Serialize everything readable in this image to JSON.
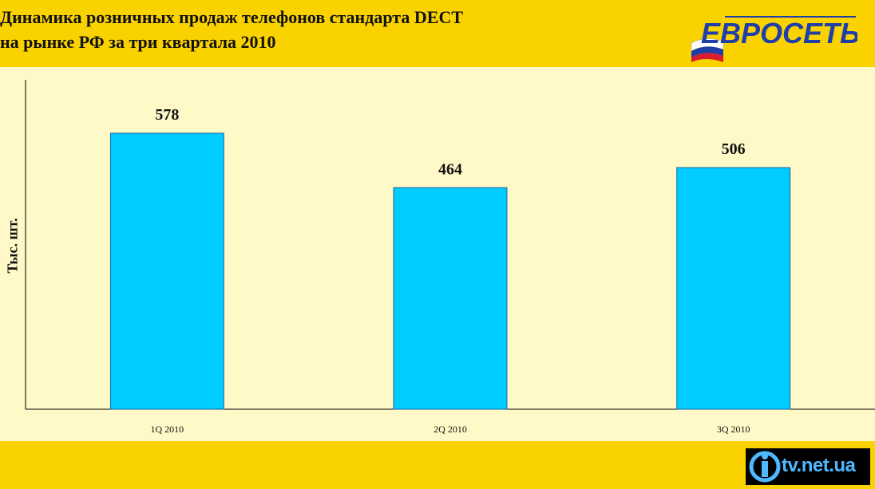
{
  "header": {
    "title_line1": "Динамика розничных продаж телефонов стандарта DECT",
    "title_line2": "на рынке РФ за три квартала 2010",
    "logo_text": "ЕВРОСЕТЬ"
  },
  "footer": {
    "watermark_text": "tv.net.ua"
  },
  "colors": {
    "band": "#fad200",
    "plot_background": "#fff9c7",
    "bar_fill": "#00ccff",
    "bar_stroke": "#1560a8"
  },
  "chart_data": {
    "type": "bar",
    "categories": [
      "1Q 2010",
      "2Q 2010",
      "3Q 2010"
    ],
    "values": [
      578,
      464,
      506
    ],
    "data_labels": [
      "578",
      "464",
      "506"
    ],
    "ylabel": "Тыс. шт.",
    "ylim": [
      0,
      690
    ],
    "grid": false,
    "legend": "none"
  }
}
